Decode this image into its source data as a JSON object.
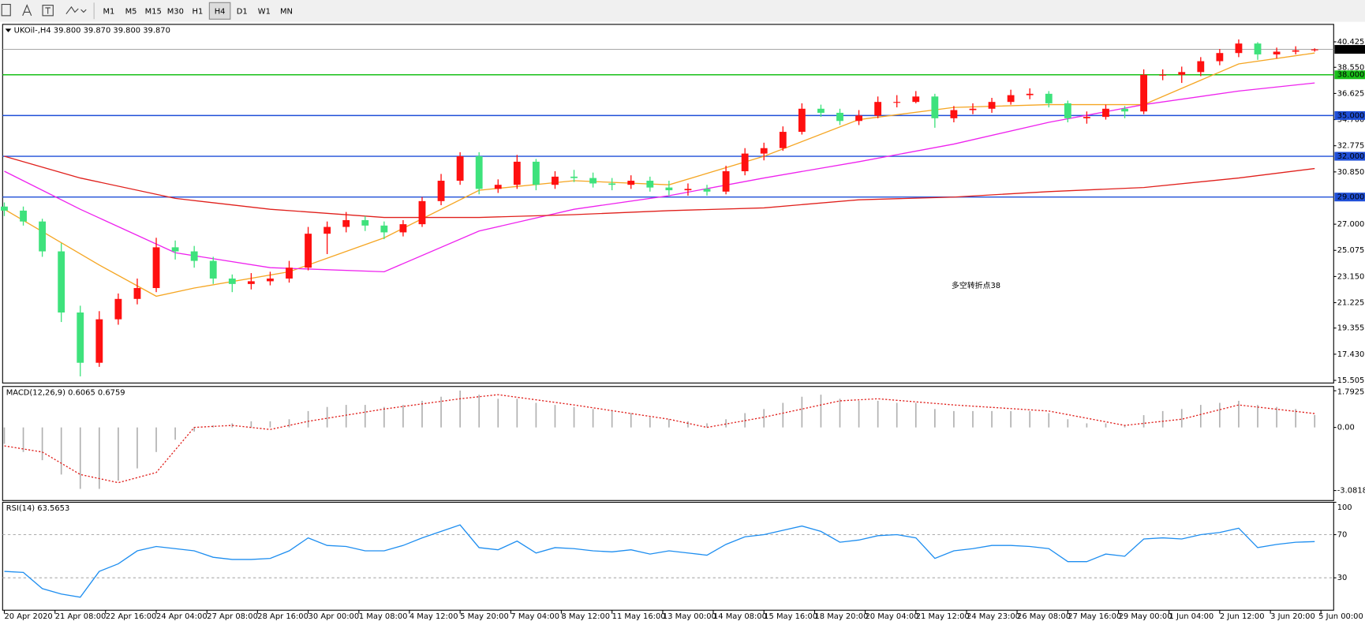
{
  "toolbar": {
    "buttons": [
      "M1",
      "M5",
      "M15",
      "M30",
      "H1",
      "H4",
      "D1",
      "W1",
      "MN"
    ],
    "active": "H4"
  },
  "chart_data": [
    {
      "type": "candlestick",
      "title": "UKOil-,H4  39.800 39.870 39.800 39.870",
      "bull_color": "#ff1010",
      "bear_color": "#3ee27c",
      "xlim": [
        -0.09,
        70
      ],
      "ylim": [
        15.31,
        41.71
      ],
      "yticks": [
        {
          "value": 40.425,
          "label": "40.425"
        },
        {
          "value": 38.55,
          "label": "38.550"
        },
        {
          "value": 36.625,
          "label": "36.625"
        },
        {
          "value": 34.7,
          "label": "34.700"
        },
        {
          "value": 32.775,
          "label": "32.775"
        },
        {
          "value": 30.85,
          "label": "30.850"
        },
        {
          "value": 27,
          "label": "27.000"
        },
        {
          "value": 25.075,
          "label": "25.075"
        },
        {
          "value": 23.15,
          "label": "23.150"
        },
        {
          "value": 21.225,
          "label": "21.225"
        },
        {
          "value": 19.355,
          "label": "19.355"
        },
        {
          "value": 17.43,
          "label": "17.430"
        },
        {
          "value": 15.505,
          "label": "15.505"
        }
      ],
      "hlines": [
        {
          "value": 38,
          "label": "38.000",
          "color": "#18c018"
        },
        {
          "value": 35,
          "label": "35.000",
          "color": "#1f4fd8"
        },
        {
          "value": 32,
          "label": "32.000",
          "color": "#1f4fd8"
        },
        {
          "value": 29,
          "label": "29.000",
          "color": "#1f4fd8"
        }
      ],
      "last_price": {
        "value": 39.87,
        "label": "39.870"
      },
      "annotation": "多空转折点38",
      "candles": [
        [
          28.3,
          28.6,
          27.6,
          28
        ],
        [
          28,
          28.3,
          26.9,
          27.2
        ],
        [
          27.2,
          27.4,
          24.6,
          25
        ],
        [
          25,
          25.6,
          19.8,
          20.5
        ],
        [
          20.5,
          21,
          15.8,
          16.8
        ],
        [
          16.8,
          20.6,
          16.5,
          20
        ],
        [
          20,
          21.9,
          19.6,
          21.5
        ],
        [
          21.5,
          23,
          21.1,
          22.3
        ],
        [
          22.3,
          26,
          22,
          25.3
        ],
        [
          25.3,
          25.8,
          24.4,
          25
        ],
        [
          25,
          25.4,
          23.8,
          24.3
        ],
        [
          24.3,
          24.6,
          22.6,
          23
        ],
        [
          23,
          23.3,
          22,
          22.6
        ],
        [
          22.6,
          23.4,
          22.2,
          22.8
        ],
        [
          22.8,
          23.5,
          22.5,
          23
        ],
        [
          23,
          24.3,
          22.7,
          23.8
        ],
        [
          23.8,
          26.8,
          23.6,
          26.3
        ],
        [
          26.3,
          27.2,
          24.8,
          26.8
        ],
        [
          26.8,
          27.9,
          26.4,
          27.3
        ],
        [
          27.3,
          27.6,
          26.5,
          26.9
        ],
        [
          26.9,
          27.2,
          25.9,
          26.4
        ],
        [
          26.4,
          27.3,
          26.1,
          27
        ],
        [
          27,
          29,
          26.8,
          28.7
        ],
        [
          28.7,
          30.7,
          28.4,
          30.2
        ],
        [
          30.2,
          32.3,
          29.9,
          32
        ],
        [
          32,
          32.3,
          29.2,
          29.6
        ],
        [
          29.6,
          30.3,
          29.3,
          29.9
        ],
        [
          29.9,
          32.1,
          29.6,
          31.6
        ],
        [
          31.6,
          31.8,
          29.5,
          29.9
        ],
        [
          29.9,
          30.9,
          29.6,
          30.5
        ],
        [
          30.5,
          31,
          30.1,
          30.4
        ],
        [
          30.4,
          30.8,
          29.7,
          30
        ],
        [
          30,
          30.4,
          29.5,
          29.9
        ],
        [
          29.9,
          30.6,
          29.6,
          30.2
        ],
        [
          30.2,
          30.5,
          29.4,
          29.7
        ],
        [
          29.7,
          30.2,
          29.1,
          29.5
        ],
        [
          29.5,
          30,
          29.1,
          29.6
        ],
        [
          29.6,
          29.9,
          29.1,
          29.4
        ],
        [
          29.4,
          31.3,
          29.2,
          30.9
        ],
        [
          30.9,
          32.6,
          30.6,
          32.2
        ],
        [
          32.2,
          33,
          31.7,
          32.6
        ],
        [
          32.6,
          34.2,
          32.4,
          33.8
        ],
        [
          33.8,
          35.9,
          33.6,
          35.5
        ],
        [
          35.5,
          35.8,
          34.9,
          35.2
        ],
        [
          35.2,
          35.5,
          34.3,
          34.6
        ],
        [
          34.6,
          35.4,
          34.3,
          35
        ],
        [
          35,
          36.4,
          34.8,
          36
        ],
        [
          36,
          36.5,
          35.6,
          36
        ],
        [
          36,
          36.8,
          35.9,
          36.4
        ],
        [
          36.4,
          36.6,
          34.1,
          34.8
        ],
        [
          34.8,
          35.7,
          34.5,
          35.4
        ],
        [
          35.4,
          35.9,
          35.1,
          35.5
        ],
        [
          35.5,
          36.3,
          35.2,
          36
        ],
        [
          36,
          36.9,
          35.8,
          36.5
        ],
        [
          36.5,
          37,
          36.2,
          36.6
        ],
        [
          36.6,
          36.8,
          35.6,
          35.9
        ],
        [
          35.9,
          36.1,
          34.5,
          34.8
        ],
        [
          34.8,
          35.3,
          34.4,
          34.9
        ],
        [
          34.9,
          35.8,
          34.7,
          35.5
        ],
        [
          35.5,
          35.7,
          34.8,
          35.3
        ],
        [
          35.3,
          38.4,
          35.1,
          38
        ],
        [
          38,
          38.4,
          37.6,
          38
        ],
        [
          38,
          38.6,
          37.4,
          38.2
        ],
        [
          38.2,
          39.3,
          37.9,
          39
        ],
        [
          39,
          39.9,
          38.7,
          39.6
        ],
        [
          39.6,
          40.6,
          39.3,
          40.3
        ],
        [
          40.3,
          40.4,
          39.1,
          39.5
        ],
        [
          39.5,
          40,
          39.2,
          39.7
        ],
        [
          39.7,
          40.1,
          39.5,
          39.8
        ],
        [
          39.8,
          39.95,
          39.7,
          39.87
        ]
      ],
      "series": [
        {
          "color": "#f5a623",
          "x": [
            0,
            5,
            8,
            10,
            15,
            20,
            25,
            30,
            35,
            40,
            45,
            50,
            55,
            60,
            65,
            69
          ],
          "values": [
            28.1,
            24,
            21.7,
            22.3,
            23.5,
            26,
            29.5,
            30.2,
            29.9,
            32,
            34.7,
            35.6,
            35.8,
            35.8,
            38.8,
            39.6
          ]
        },
        {
          "color": "#ee22ee",
          "x": [
            0,
            4,
            9,
            14,
            20,
            25,
            30,
            35,
            40,
            45,
            50,
            55,
            60,
            65,
            69
          ],
          "values": [
            30.9,
            28.1,
            24.9,
            23.8,
            23.5,
            26.5,
            28.1,
            29.1,
            30.4,
            31.6,
            32.9,
            34.5,
            35.8,
            36.8,
            37.4
          ]
        },
        {
          "color": "#e0201c",
          "x": [
            0,
            4,
            9,
            14,
            20,
            25,
            30,
            35,
            40,
            45,
            50,
            55,
            60,
            65,
            69
          ],
          "values": [
            32,
            30.4,
            28.9,
            28.1,
            27.5,
            27.5,
            27.7,
            28,
            28.2,
            28.8,
            29,
            29.4,
            29.7,
            30.4,
            31.1
          ]
        }
      ]
    },
    {
      "type": "macd",
      "title": "MACD(12,26,9) 0.6065 0.6759",
      "xlim": [
        -0.09,
        70
      ],
      "ylim": [
        -3.57,
        2.0
      ],
      "yticks": [
        1.7925,
        {
          "value": 0,
          "label": "0.00"
        },
        -3.0818
      ],
      "values": [
        -0.8,
        -1.2,
        -1.6,
        -2.3,
        -3.0,
        -3.0,
        -2.6,
        -2.0,
        -1.2,
        -0.6,
        -0.2,
        0.1,
        0.2,
        0.3,
        0.3,
        0.4,
        0.8,
        1.0,
        1.1,
        1.1,
        1.0,
        1.1,
        1.3,
        1.5,
        1.8,
        1.6,
        1.4,
        1.4,
        1.2,
        1.1,
        1.0,
        0.9,
        0.8,
        0.7,
        0.5,
        0.4,
        0.3,
        0.2,
        0.4,
        0.7,
        0.9,
        1.2,
        1.5,
        1.6,
        1.4,
        1.3,
        1.3,
        1.2,
        1.2,
        0.9,
        0.8,
        0.8,
        0.8,
        0.8,
        0.8,
        0.7,
        0.4,
        0.2,
        0.2,
        0.1,
        0.6,
        0.8,
        0.9,
        1.1,
        1.2,
        1.3,
        1.1,
        1.0,
        0.9,
        0.6065
      ],
      "signal": {
        "color": "#e0201c",
        "x": [
          0,
          2,
          4,
          6,
          8,
          10,
          12,
          14,
          16,
          20,
          24,
          26,
          30,
          35,
          37,
          40,
          44,
          46,
          50,
          55,
          59,
          62,
          65,
          69
        ],
        "values": [
          -0.9,
          -1.2,
          -2.3,
          -2.7,
          -2.2,
          0,
          0.1,
          -0.1,
          0.3,
          0.9,
          1.4,
          1.6,
          1.1,
          0.4,
          0,
          0.5,
          1.3,
          1.4,
          1.1,
          0.8,
          0.1,
          0.4,
          1.1,
          0.6759
        ]
      }
    },
    {
      "type": "line",
      "title": "RSI(14) 63.5653",
      "color": "#1e8ef0",
      "xlim": [
        -0.09,
        70
      ],
      "ylim": [
        0,
        100
      ],
      "yticks": [
        100,
        70,
        30
      ],
      "values": [
        36,
        35,
        20,
        15,
        12,
        36,
        43,
        55,
        59,
        57,
        55,
        49,
        47,
        47,
        48,
        55,
        67,
        60,
        59,
        55,
        55,
        60,
        67,
        73,
        79,
        58,
        56,
        64,
        53,
        58,
        57,
        55,
        54,
        56,
        52,
        55,
        53,
        51,
        61,
        68,
        70,
        74,
        78,
        73,
        63,
        65,
        69,
        70,
        67,
        48,
        55,
        57,
        60,
        60,
        59,
        57,
        45,
        45,
        52,
        50,
        66,
        67,
        66,
        70,
        72,
        76,
        58,
        61,
        63,
        63.5653
      ],
      "xticks": [
        {
          "value": 0,
          "label": "20 Apr 2020"
        },
        {
          "value": 2.67,
          "label": "21 Apr 08:00"
        },
        {
          "value": 5.33,
          "label": "22 Apr 16:00"
        },
        {
          "value": 8,
          "label": "24 Apr 04:00"
        },
        {
          "value": 10.67,
          "label": "27 Apr 08:00"
        },
        {
          "value": 13.33,
          "label": "28 Apr 16:00"
        },
        {
          "value": 16,
          "label": "30 Apr 00:00"
        },
        {
          "value": 18.67,
          "label": "1 May 08:00"
        },
        {
          "value": 21.33,
          "label": "4 May 12:00"
        },
        {
          "value": 24,
          "label": "5 May 20:00"
        },
        {
          "value": 26.67,
          "label": "7 May 04:00"
        },
        {
          "value": 29.33,
          "label": "8 May 12:00"
        },
        {
          "value": 32,
          "label": "11 May 16:00"
        },
        {
          "value": 34.67,
          "label": "13 May 00:00"
        },
        {
          "value": 37.33,
          "label": "14 May 08:00"
        },
        {
          "value": 40,
          "label": "15 May 16:00"
        },
        {
          "value": 42.67,
          "label": "18 May 20:00"
        },
        {
          "value": 45.33,
          "label": "20 May 04:00"
        },
        {
          "value": 48,
          "label": "21 May 12:00"
        },
        {
          "value": 50.67,
          "label": "24 May 23:00"
        },
        {
          "value": 53.33,
          "label": "26 May 08:00"
        },
        {
          "value": 56,
          "label": "27 May 16:00"
        },
        {
          "value": 58.67,
          "label": "29 May 00:00"
        },
        {
          "value": 61.33,
          "label": "1 Jun 04:00"
        },
        {
          "value": 64,
          "label": "2 Jun 12:00"
        },
        {
          "value": 66.67,
          "label": "3 Jun 20:00"
        },
        {
          "value": 69.33,
          "label": "5 Jun 00:00"
        }
      ]
    }
  ]
}
